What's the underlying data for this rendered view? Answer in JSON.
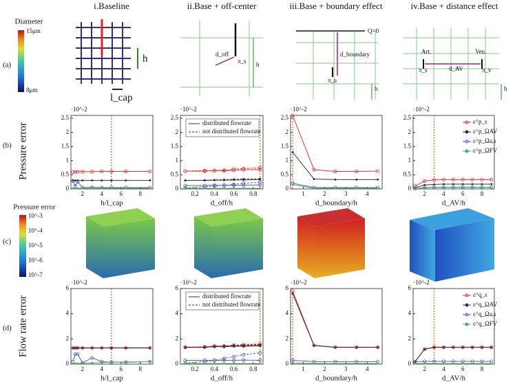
{
  "column_titles": [
    "i.Baseline",
    "ii.Base + off-center",
    "iii.Base + boundary effect",
    "iv.Base + distance effect"
  ],
  "row_labels": [
    "(a)",
    "(b)",
    "(c)",
    "(d)"
  ],
  "y_titles": [
    "Pressure error",
    "Flow rate error"
  ],
  "diameter_colorbar": {
    "title": "Diameter",
    "top": "15μm",
    "bottom": "8μm"
  },
  "pressure_colorbar": {
    "title": "Pressure  error",
    "labels": [
      "10^-3",
      "10^-4",
      "10^-5",
      "10^-6",
      "10^-7"
    ]
  },
  "schematics": {
    "h1": "h",
    "lcap": "l_cap",
    "doff": "d_off",
    "pis2": "π_s",
    "h2": "h",
    "q0": "Q=0",
    "dbound": "d_boundary",
    "pia": "π_a",
    "h3": "h",
    "art": "Art.",
    "ven": "Ven.",
    "pis4": "π_s",
    "dav": "d_AV",
    "piv": "π_v",
    "h4": "h"
  },
  "chart_data": [
    {
      "type": "line",
      "xlabel": "h/l_cap",
      "exponent": "·10^-2",
      "xlim": [
        0.8,
        9.3
      ],
      "xticks": [
        2,
        4,
        6,
        8
      ],
      "ylim": [
        0,
        2.6
      ],
      "yticks": [
        0,
        0.5,
        1,
        1.5,
        2,
        2.5
      ],
      "vline": 5,
      "x": [
        1,
        1.25,
        1.5,
        2,
        3,
        4,
        5,
        6.5,
        9
      ],
      "series": [
        {
          "color": "#e03030",
          "marker": "circle",
          "values": [
            0.6,
            0.6,
            0.61,
            0.61,
            0.61,
            0.62,
            0.62,
            0.62,
            0.62
          ]
        },
        {
          "color": "#333333",
          "marker": "dot",
          "values": [
            0.3,
            0.3,
            0.3,
            0.3,
            0.3,
            0.3,
            0.3,
            0.3,
            0.3
          ]
        },
        {
          "color": "#4a5fc8",
          "marker": "circle",
          "values": [
            0.28,
            0.1,
            0.25,
            0.05,
            0.06,
            0.05,
            0.05,
            0.05,
            0.05
          ]
        },
        {
          "color": "#4caf50",
          "marker": "dot",
          "values": [
            0.02,
            0.02,
            0.02,
            0.02,
            0.02,
            0.02,
            0.02,
            0.02,
            0.02
          ]
        }
      ]
    },
    {
      "type": "line",
      "xlabel": "d_off/h",
      "exponent": "·10^-2",
      "xlim": [
        0.05,
        0.9
      ],
      "xticks": [
        0.2,
        0.4,
        0.6,
        0.8
      ],
      "ylim": [
        0,
        2.6
      ],
      "yticks": [
        0,
        0.5,
        1,
        1.5,
        2,
        2.5
      ],
      "vline": 0.87,
      "legend_entries": [
        {
          "name": "distributed flowrate",
          "dashed": false
        },
        {
          "name": "not distributed flowrate",
          "dashed": true
        }
      ],
      "x": [
        0.1,
        0.3,
        0.4,
        0.5,
        0.6,
        0.7,
        0.87
      ],
      "series": [
        {
          "color": "#e03030",
          "marker": "circle",
          "dashed": false,
          "values": [
            0.63,
            0.63,
            0.65,
            0.64,
            0.66,
            0.68,
            0.68
          ]
        },
        {
          "color": "#e03030",
          "marker": "circle",
          "dashed": true,
          "values": [
            0.63,
            0.65,
            0.65,
            0.66,
            0.7,
            0.72,
            0.75
          ]
        },
        {
          "color": "#333333",
          "marker": "dot",
          "dashed": false,
          "values": [
            0.3,
            0.3,
            0.31,
            0.31,
            0.32,
            0.32,
            0.33
          ]
        },
        {
          "color": "#333333",
          "marker": "dot",
          "dashed": true,
          "values": [
            0.3,
            0.31,
            0.32,
            0.33,
            0.34,
            0.35,
            0.36
          ]
        },
        {
          "color": "#4a5fc8",
          "marker": "circle",
          "dashed": false,
          "values": [
            0.12,
            0.12,
            0.13,
            0.12,
            0.13,
            0.13,
            0.14
          ]
        },
        {
          "color": "#4a5fc8",
          "marker": "circle",
          "dashed": true,
          "values": [
            0.04,
            0.08,
            0.1,
            0.13,
            0.16,
            0.2,
            0.24
          ]
        },
        {
          "color": "#4caf50",
          "marker": "dot",
          "dashed": false,
          "values": [
            0.02,
            0.02,
            0.02,
            0.02,
            0.02,
            0.02,
            0.02
          ]
        }
      ]
    },
    {
      "type": "line",
      "xlabel": "d_boundary/h",
      "exponent": "·10^-2",
      "xlim": [
        0.4,
        4.7
      ],
      "xticks": [
        1,
        2,
        3,
        4
      ],
      "ylim": [
        0,
        2.6
      ],
      "yticks": [
        0,
        0.5,
        1,
        1.5,
        2,
        2.5
      ],
      "vline": 0.5,
      "x": [
        0.5,
        1.5,
        2.5,
        3.5,
        4.5
      ],
      "series": [
        {
          "color": "#e03030",
          "marker": "circle",
          "values": [
            2.6,
            0.68,
            0.62,
            0.62,
            0.63
          ]
        },
        {
          "color": "#333333",
          "marker": "dot",
          "values": [
            1.3,
            0.35,
            0.33,
            0.33,
            0.33
          ]
        },
        {
          "color": "#4a5fc8",
          "marker": "circle",
          "values": [
            0.2,
            0.05,
            0.05,
            0.05,
            0.05
          ]
        },
        {
          "color": "#4caf50",
          "marker": "dot",
          "values": [
            0.15,
            0.02,
            0.02,
            0.02,
            0.02
          ]
        }
      ]
    },
    {
      "type": "line",
      "xlabel": "d_AV/h",
      "exponent": "·10^-2",
      "xlim": [
        0.8,
        9.3
      ],
      "xticks": [
        2,
        4,
        6,
        8
      ],
      "ylim": [
        0,
        2.6
      ],
      "yticks": [
        0,
        0.5,
        1,
        1.5,
        2,
        2.5
      ],
      "vline": 3,
      "x": [
        1,
        2,
        3,
        4,
        5,
        6,
        7,
        8,
        9
      ],
      "series": [
        {
          "name": "ε^p_s",
          "color": "#e03030",
          "marker": "circle",
          "values": [
            0.1,
            0.28,
            0.32,
            0.33,
            0.33,
            0.33,
            0.33,
            0.33,
            0.33
          ]
        },
        {
          "name": "ε^p_ΩAV",
          "color": "#333333",
          "marker": "dot",
          "values": [
            0.05,
            0.14,
            0.16,
            0.17,
            0.17,
            0.17,
            0.17,
            0.17,
            0.17
          ]
        },
        {
          "name": "ε^p_Ωa,s",
          "color": "#4a5fc8",
          "marker": "circle",
          "values": [
            0.02,
            0.05,
            0.06,
            0.06,
            0.06,
            0.06,
            0.06,
            0.06,
            0.06
          ]
        },
        {
          "name": "ε^p_ΩFV",
          "color": "#4caf50",
          "marker": "dot",
          "values": [
            0.01,
            0.01,
            0.01,
            0.01,
            0.01,
            0.01,
            0.01,
            0.01,
            0.01
          ]
        }
      ]
    },
    {
      "type": "line",
      "xlabel": "h/l_cap",
      "exponent": "·10^-2",
      "xlim": [
        0.8,
        9.3
      ],
      "xticks": [
        2,
        4,
        6,
        8
      ],
      "ylim": [
        0,
        6
      ],
      "yticks": [
        0,
        2,
        4,
        6
      ],
      "vline": 5,
      "x": [
        1,
        1.25,
        1.5,
        2,
        3,
        4,
        5,
        6.5,
        9
      ],
      "series": [
        {
          "color": "#e03030",
          "marker": "circle",
          "values": [
            1.3,
            1.3,
            1.3,
            1.3,
            1.3,
            1.3,
            1.3,
            1.3,
            1.3
          ]
        },
        {
          "color": "#333333",
          "marker": "dot",
          "values": [
            1.28,
            1.28,
            1.28,
            1.28,
            1.28,
            1.28,
            1.28,
            1.28,
            1.28
          ]
        },
        {
          "color": "#4a5fc8",
          "marker": "circle",
          "values": [
            0.2,
            0.8,
            0.8,
            0.1,
            0.5,
            0.2,
            0.15,
            0.15,
            0.2
          ]
        },
        {
          "color": "#4caf50",
          "marker": "dot",
          "values": [
            0.05,
            0.05,
            0.05,
            0.08,
            0.1,
            0.12,
            0.15,
            0.18,
            0.2
          ]
        }
      ]
    },
    {
      "type": "line",
      "xlabel": "d_off/h",
      "exponent": "·10^-2",
      "xlim": [
        0.05,
        0.9
      ],
      "xticks": [
        0.2,
        0.4,
        0.6,
        0.8
      ],
      "ylim": [
        0,
        6
      ],
      "yticks": [
        0,
        2,
        4,
        6
      ],
      "vline": 0.87,
      "legend_entries": [
        {
          "name": "distributed flowrate",
          "dashed": false
        },
        {
          "name": "not distributed flowrate",
          "dashed": true
        }
      ],
      "x": [
        0.1,
        0.3,
        0.4,
        0.5,
        0.6,
        0.7,
        0.87
      ],
      "series": [
        {
          "color": "#e03030",
          "marker": "circle",
          "dashed": false,
          "values": [
            1.35,
            1.35,
            1.45,
            1.4,
            1.45,
            1.45,
            1.5
          ]
        },
        {
          "color": "#e03030",
          "marker": "circle",
          "dashed": true,
          "values": [
            1.35,
            1.38,
            1.4,
            1.45,
            1.5,
            1.55,
            1.6
          ]
        },
        {
          "color": "#333333",
          "marker": "dot",
          "dashed": false,
          "values": [
            1.32,
            1.33,
            1.4,
            1.38,
            1.42,
            1.42,
            1.45
          ]
        },
        {
          "color": "#333333",
          "marker": "dot",
          "dashed": true,
          "values": [
            1.33,
            1.35,
            1.38,
            1.43,
            1.48,
            1.52,
            1.55
          ]
        },
        {
          "color": "#4a5fc8",
          "marker": "circle",
          "dashed": false,
          "values": [
            0.3,
            0.3,
            0.3,
            0.3,
            0.3,
            0.32,
            0.3
          ]
        },
        {
          "color": "#4a5fc8",
          "marker": "circle",
          "dashed": true,
          "values": [
            0.1,
            0.2,
            0.3,
            0.45,
            0.6,
            0.75,
            0.9
          ]
        },
        {
          "color": "#4caf50",
          "marker": "dot",
          "dashed": false,
          "values": [
            0.05,
            0.05,
            0.05,
            0.05,
            0.05,
            0.05,
            0.05
          ]
        }
      ]
    },
    {
      "type": "line",
      "xlabel": "d_boundary/h",
      "exponent": "·10^-2",
      "xlim": [
        0.4,
        4.7
      ],
      "xticks": [
        1,
        2,
        3,
        4
      ],
      "ylim": [
        0,
        6
      ],
      "yticks": [
        0,
        2,
        4,
        6
      ],
      "vline": 0.5,
      "x": [
        0.5,
        1.5,
        2.5,
        3.5,
        4.5
      ],
      "series": [
        {
          "color": "#e03030",
          "marker": "circle",
          "values": [
            5.8,
            1.5,
            1.35,
            1.35,
            1.35
          ]
        },
        {
          "color": "#333333",
          "marker": "dot",
          "values": [
            5.6,
            1.48,
            1.33,
            1.33,
            1.33
          ]
        },
        {
          "color": "#4a5fc8",
          "marker": "circle",
          "values": [
            0.3,
            0.2,
            0.2,
            0.2,
            0.2
          ]
        },
        {
          "color": "#4caf50",
          "marker": "dot",
          "values": [
            0.1,
            0.05,
            0.05,
            0.05,
            0.05
          ]
        }
      ]
    },
    {
      "type": "line",
      "xlabel": "d_AV/h",
      "exponent": "·10^-2",
      "xlim": [
        0.8,
        9.3
      ],
      "xticks": [
        2,
        4,
        6,
        8
      ],
      "ylim": [
        0,
        6
      ],
      "yticks": [
        0,
        2,
        4,
        6
      ],
      "vline": 3,
      "x": [
        1,
        2,
        3,
        4,
        5,
        6,
        7,
        8,
        9
      ],
      "series": [
        {
          "name": "ε^q_s",
          "color": "#e03030",
          "marker": "circle",
          "values": [
            0.2,
            1.2,
            1.35,
            1.35,
            1.35,
            1.35,
            1.35,
            1.35,
            1.35
          ]
        },
        {
          "name": "ε^q_ΩAV",
          "color": "#333333",
          "marker": "dot",
          "values": [
            0.18,
            1.18,
            1.33,
            1.33,
            1.33,
            1.33,
            1.33,
            1.33,
            1.33
          ]
        },
        {
          "name": "ε^q_Ωa,s",
          "color": "#4a5fc8",
          "marker": "circle",
          "values": [
            0.2,
            0.22,
            0.22,
            0.22,
            0.22,
            0.22,
            0.22,
            0.22,
            0.22
          ]
        },
        {
          "name": "ε^q_ΩFV",
          "color": "#4caf50",
          "marker": "dot",
          "values": [
            0.05,
            0.05,
            0.05,
            0.05,
            0.05,
            0.05,
            0.05,
            0.05,
            0.05
          ]
        }
      ]
    }
  ]
}
